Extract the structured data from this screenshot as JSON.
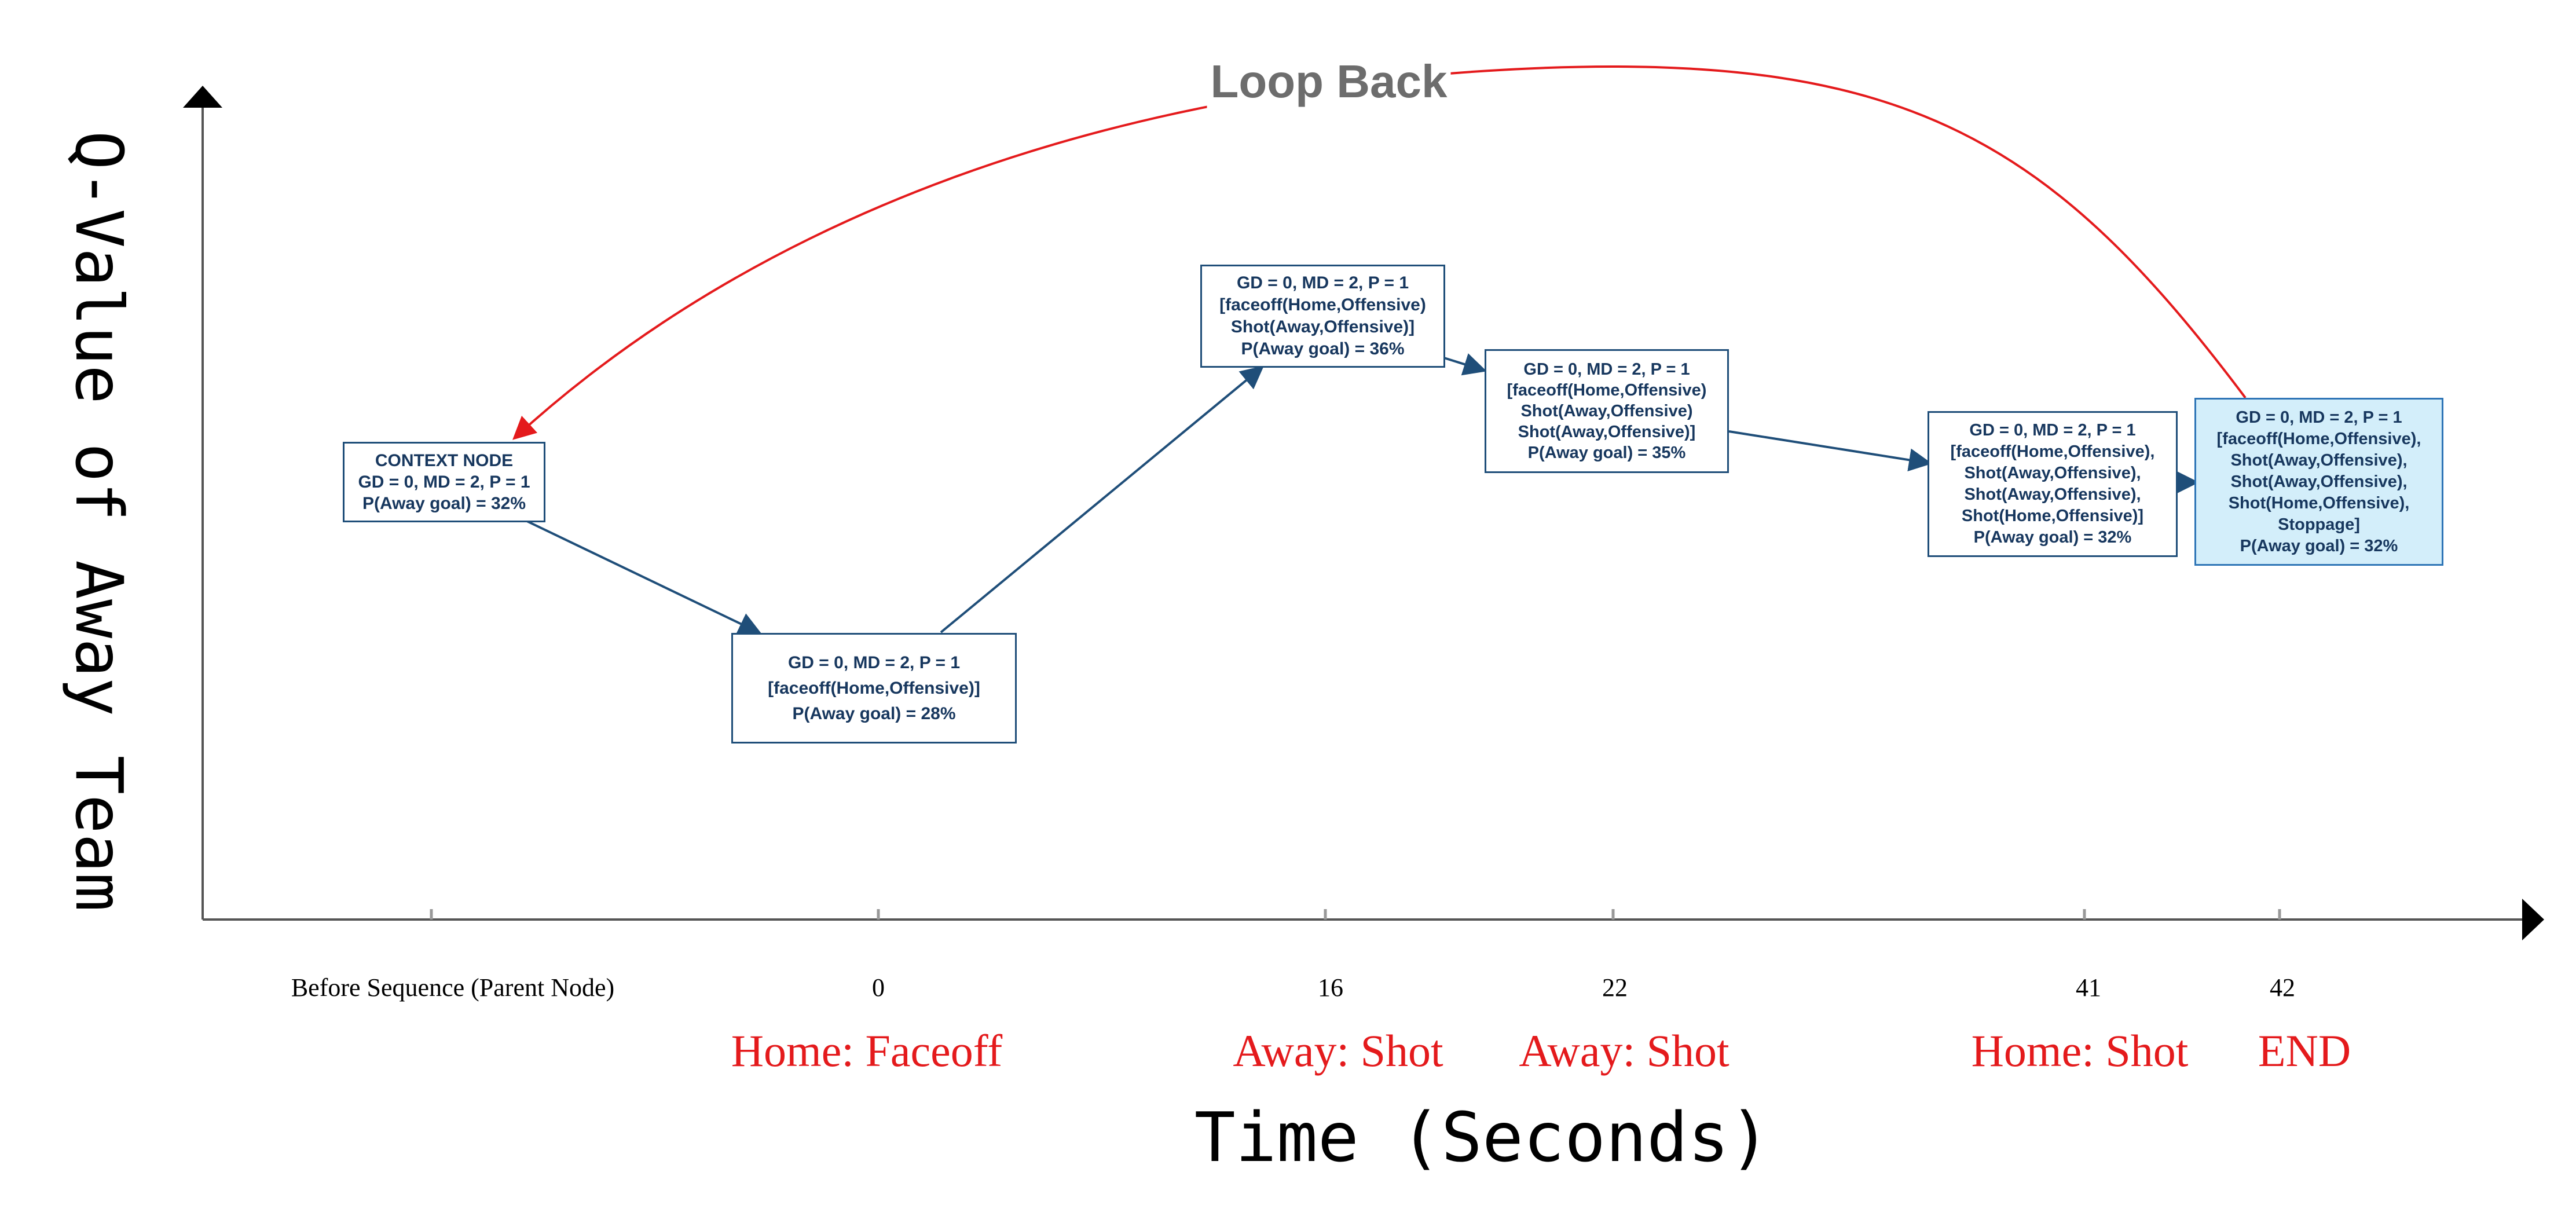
{
  "diagram": {
    "y_axis_title": "Q-Value of Away Team",
    "x_axis_title": "Time (Seconds)",
    "loop_label": "Loop Back",
    "colors": {
      "node_border": "#1f4e79",
      "node_text": "#17375e",
      "final_node_fill": "#d3eefa",
      "arrow": "#1f4e79",
      "loop_arrow": "#e41a1c",
      "event_text": "#e41a1c",
      "loop_label": "#6d6d6d"
    },
    "ticks": [
      {
        "label": "Before Sequence (Parent Node)"
      },
      {
        "label": "0"
      },
      {
        "label": "16"
      },
      {
        "label": "22"
      },
      {
        "label": "41"
      },
      {
        "label": "42"
      }
    ],
    "events": [
      {
        "label": "Home: Faceoff"
      },
      {
        "label": "Away: Shot"
      },
      {
        "label": "Away: Shot"
      },
      {
        "label": "Home: Shot"
      },
      {
        "label": "END"
      }
    ],
    "nodes": [
      {
        "id": "context",
        "lines": [
          "CONTEXT NODE",
          "GD = 0, MD = 2, P = 1",
          "P(Away goal) = 32%"
        ],
        "q_value": 32
      },
      {
        "id": "t0",
        "lines": [
          "GD = 0, MD = 2, P = 1",
          "[faceoff(Home,Offensive)]",
          "P(Away goal) = 28%"
        ],
        "q_value": 28
      },
      {
        "id": "t16",
        "lines": [
          "GD = 0, MD = 2, P = 1",
          "[faceoff(Home,Offensive)",
          "Shot(Away,Offensive)]",
          "P(Away goal) = 36%"
        ],
        "q_value": 36
      },
      {
        "id": "t22",
        "lines": [
          "GD = 0, MD = 2, P = 1",
          "[faceoff(Home,Offensive)",
          "Shot(Away,Offensive)",
          "Shot(Away,Offensive)]",
          "P(Away goal) = 35%"
        ],
        "q_value": 35
      },
      {
        "id": "t41",
        "lines": [
          "GD = 0, MD = 2, P = 1",
          "[faceoff(Home,Offensive),",
          "Shot(Away,Offensive),",
          "Shot(Away,Offensive),",
          "Shot(Home,Offensive)]",
          "P(Away goal) = 32%"
        ],
        "q_value": 32
      },
      {
        "id": "t42",
        "lines": [
          "GD = 0, MD = 2, P = 1",
          "[faceoff(Home,Offensive),",
          "Shot(Away,Offensive),",
          "Shot(Away,Offensive),",
          "Shot(Home,Offensive),",
          "Stoppage]",
          "P(Away goal) = 32%"
        ],
        "q_value": 32
      }
    ]
  }
}
